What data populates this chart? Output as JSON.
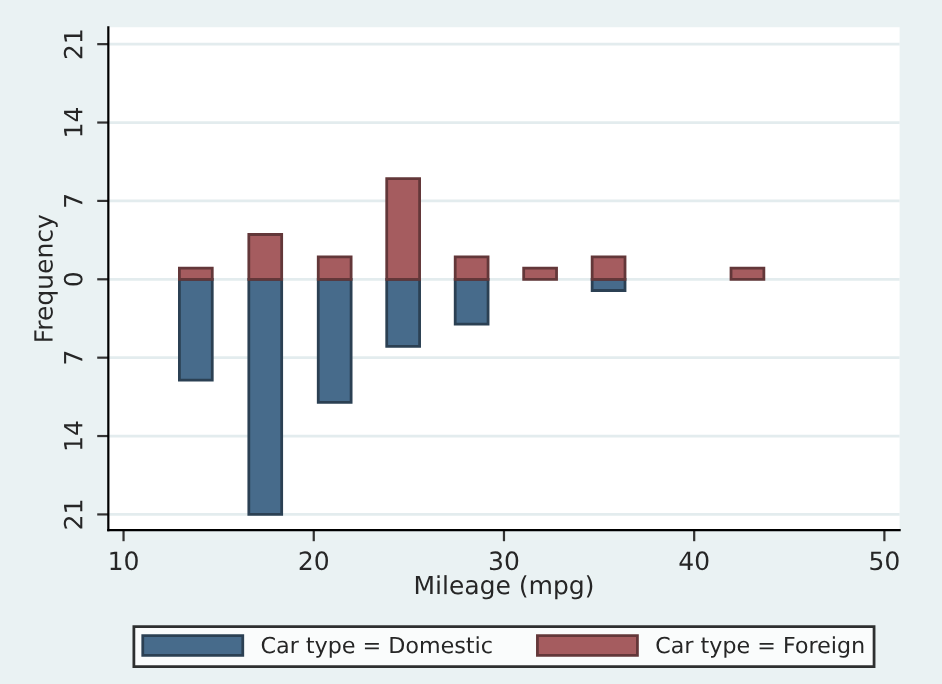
{
  "chart_data": {
    "type": "bar",
    "xlabel": "Mileage (mpg)",
    "ylabel": "Frequency",
    "x": [
      13.8,
      17.45,
      21.1,
      24.7,
      28.3,
      31.9,
      35.5,
      42.8
    ],
    "series": [
      {
        "name": "Car type = Domestic",
        "color": "#476b8b",
        "values": [
          -9,
          -21,
          -11,
          -6,
          -4,
          null,
          -1,
          null
        ]
      },
      {
        "name": "Car type = Foreign",
        "color": "#a55c5f",
        "values": [
          1,
          4,
          2,
          9,
          2,
          1,
          2,
          1
        ]
      }
    ],
    "xlim": [
      9.2,
      50.8
    ],
    "xticks": [
      10,
      20,
      30,
      40,
      50
    ],
    "ylim": [
      -22.4,
      22.5
    ],
    "yticks": [
      {
        "value": -21,
        "label": "21"
      },
      {
        "value": -14,
        "label": "14"
      },
      {
        "value": -7,
        "label": "7"
      },
      0,
      7,
      14,
      21
    ],
    "grid": "y",
    "legend": "bottom",
    "stacked": true
  }
}
